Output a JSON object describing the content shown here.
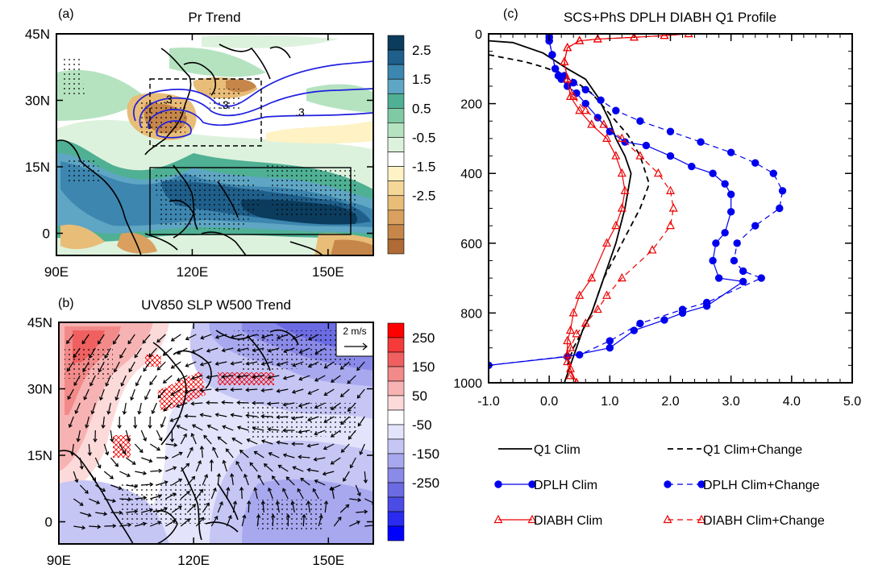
{
  "figure": {
    "panel_a_tag": "(a)",
    "panel_b_tag": "(b)",
    "panel_c_tag": "(c)"
  },
  "chart_data": [
    {
      "panel": "(a)",
      "type": "heatmap",
      "title": "Pr Trend",
      "x_ticks": [
        "90E",
        "120E",
        "150E"
      ],
      "x_tick_values": [
        90,
        120,
        150
      ],
      "y_ticks": [
        "45N",
        "30N",
        "15N",
        "0"
      ],
      "y_tick_values": [
        45,
        30,
        15,
        0
      ],
      "xlim": [
        90,
        160
      ],
      "ylim": [
        -5,
        45
      ],
      "colorbar_labels": [
        "2.5",
        "1.5",
        "0.5",
        "-0.5",
        "-1.5",
        "-2.5"
      ],
      "colorbar_colors": [
        "#0b3c5d",
        "#1f5f8b",
        "#3d86b0",
        "#5fa6c4",
        "#4fb093",
        "#7fcaa5",
        "#b5e3c0",
        "#ddf2dd",
        "#ffffff",
        "#fff2c4",
        "#f5d898",
        "#e8bd78",
        "#d9a05f",
        "#c6864a",
        "#b06a35"
      ],
      "contour_labels": [
        ".3",
        ".3",
        ".3"
      ],
      "boxes": [
        {
          "style": "dashed",
          "lon": [
            110,
            135
          ],
          "lat": [
            20,
            35
          ]
        },
        {
          "style": "solid",
          "lon": [
            110,
            155
          ],
          "lat": [
            0,
            15
          ]
        }
      ]
    },
    {
      "panel": "(b)",
      "type": "heatmap",
      "title": "UV850 SLP W500 Trend",
      "x_ticks": [
        "90E",
        "120E",
        "150E"
      ],
      "x_tick_values": [
        90,
        120,
        150
      ],
      "y_ticks": [
        "45N",
        "30N",
        "15N",
        "0"
      ],
      "y_tick_values": [
        45,
        30,
        15,
        0
      ],
      "xlim": [
        90,
        160
      ],
      "ylim": [
        -5,
        45
      ],
      "reference_vector": "2 m/s",
      "colorbar_labels": [
        "250",
        "150",
        "50",
        "-50",
        "-150",
        "-250"
      ],
      "colorbar_colors": [
        "#ff0000",
        "#f53a3a",
        "#f06060",
        "#f28a8a",
        "#f7b3b3",
        "#fcdada",
        "#ffffff",
        "#e3e3fb",
        "#c6c6f5",
        "#a8a8ef",
        "#8a8ae9",
        "#6b6be3",
        "#4b4be6",
        "#2a2af0",
        "#0000ff"
      ]
    },
    {
      "panel": "(c)",
      "type": "line",
      "title": "SCS+PhS DPLH DIABH Q1 Profile",
      "xlim": [
        -1,
        5
      ],
      "ylim": [
        1000,
        0
      ],
      "x_ticks": [
        "-1.0",
        "0.0",
        "1.0",
        "2.0",
        "3.0",
        "4.0",
        "5.0"
      ],
      "x_tick_values": [
        -1,
        0,
        1,
        2,
        3,
        4,
        5
      ],
      "y_ticks": [
        "0",
        "200",
        "400",
        "600",
        "800",
        "1000"
      ],
      "y_tick_values": [
        0,
        200,
        400,
        600,
        800,
        1000
      ],
      "series": [
        {
          "name": "Q1 Clim",
          "color": "#000000",
          "dash": "solid",
          "marker": "none",
          "x": [
            -1.0,
            -0.6,
            -0.1,
            0.3,
            0.6,
            0.8,
            1.0,
            1.1,
            1.25,
            1.35,
            1.25,
            1.1,
            0.9,
            0.7,
            0.55,
            0.45,
            0.35,
            0.25
          ],
          "y": [
            20,
            25,
            55,
            100,
            130,
            180,
            250,
            300,
            350,
            400,
            500,
            600,
            700,
            800,
            850,
            900,
            950,
            1000
          ]
        },
        {
          "name": "Q1 Clim+Change",
          "color": "#000000",
          "dash": "dashed",
          "marker": "none",
          "x": [
            -1.0,
            -0.7,
            -0.4,
            -0.1,
            0.3,
            0.7,
            1.0,
            1.3,
            1.5,
            1.65,
            1.5,
            1.2,
            0.9,
            0.7,
            0.55,
            0.4,
            0.3
          ],
          "y": [
            60,
            70,
            80,
            95,
            120,
            170,
            230,
            290,
            350,
            430,
            500,
            600,
            700,
            800,
            850,
            900,
            950
          ]
        },
        {
          "name": "DPLH Clim",
          "color": "#0000ee",
          "dash": "solid",
          "marker": "circle",
          "x": [
            0.0,
            0.0,
            0.0,
            0.05,
            0.1,
            0.15,
            0.2,
            0.3,
            0.45,
            0.6,
            0.8,
            1.0,
            1.25,
            1.6,
            2.0,
            2.35,
            2.7,
            2.9,
            3.0,
            3.0,
            2.9,
            2.75,
            2.7,
            2.8,
            3.2,
            2.6,
            2.2,
            1.9,
            1.4,
            1.0,
            0.3,
            -1.0
          ],
          "y": [
            0,
            10,
            20,
            60,
            100,
            120,
            130,
            150,
            170,
            200,
            240,
            280,
            310,
            320,
            350,
            380,
            400,
            430,
            460,
            510,
            570,
            600,
            650,
            700,
            710,
            780,
            800,
            820,
            850,
            900,
            925,
            950
          ]
        },
        {
          "name": "DPLH Clim+Change",
          "color": "#0000ee",
          "dash": "dashed",
          "marker": "circle",
          "x": [
            0.0,
            0.0,
            0.0,
            0.05,
            0.1,
            0.25,
            0.4,
            0.6,
            0.85,
            1.1,
            1.5,
            2.0,
            2.5,
            3.0,
            3.4,
            3.7,
            3.85,
            3.8,
            3.4,
            3.1,
            3.05,
            3.2,
            3.5,
            2.6,
            2.2,
            1.5,
            1.0,
            0.5,
            -1.0
          ],
          "y": [
            0,
            10,
            20,
            60,
            100,
            120,
            140,
            160,
            190,
            220,
            250,
            280,
            310,
            340,
            370,
            400,
            450,
            500,
            550,
            600,
            650,
            680,
            700,
            770,
            790,
            830,
            880,
            920,
            950
          ]
        },
        {
          "name": "DIABH Clim",
          "color": "#ee0000",
          "dash": "solid",
          "marker": "triangle",
          "x": [
            2.3,
            1.9,
            1.4,
            0.8,
            0.5,
            0.3,
            0.25,
            0.3,
            0.35,
            0.5,
            0.7,
            0.95,
            1.1,
            1.2,
            1.25,
            1.2,
            1.1,
            0.95,
            0.7,
            0.5,
            0.4,
            0.35,
            0.3,
            0.3,
            0.35,
            0.45
          ],
          "y": [
            0,
            5,
            10,
            15,
            20,
            40,
            80,
            130,
            180,
            220,
            260,
            300,
            350,
            400,
            450,
            500,
            550,
            600,
            700,
            750,
            800,
            850,
            880,
            920,
            960,
            1000
          ]
        },
        {
          "name": "DIABH Clim+Change",
          "color": "#ee0000",
          "dash": "dashed",
          "marker": "triangle",
          "x": [
            2.3,
            1.9,
            1.4,
            0.8,
            0.5,
            0.3,
            0.25,
            0.3,
            0.4,
            0.6,
            0.9,
            1.2,
            1.5,
            1.8,
            2.0,
            2.05,
            2.0,
            1.7,
            1.2,
            0.95,
            0.8,
            0.6,
            0.45,
            0.35,
            0.3,
            0.35,
            0.45
          ],
          "y": [
            0,
            5,
            10,
            15,
            20,
            40,
            80,
            130,
            180,
            220,
            260,
            300,
            350,
            400,
            450,
            500,
            550,
            620,
            700,
            750,
            790,
            830,
            860,
            900,
            940,
            980,
            1000
          ]
        }
      ]
    }
  ]
}
